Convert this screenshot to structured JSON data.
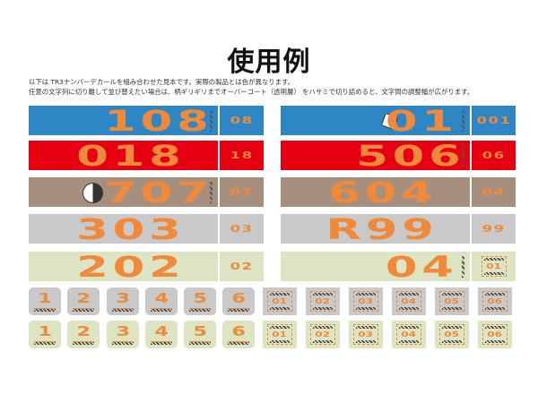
{
  "title": "使用例",
  "description": [
    "以下は TR3ナンバーデカールを組み合わせた見本です。実際の製品とは色が異なります。",
    "任意の文字列に切り離して並び替えたい場合は、柄ギリギリまでオーバーコート（透明層） をハサミで切り詰めると、文字間の調整幅が広がります。"
  ],
  "colors": {
    "blue": "#2f86c4",
    "red": "#e60012",
    "tan": "#a68f7c",
    "gray": "#c9c9c9",
    "green": "#dde4c4",
    "orange": "#f08a3a"
  },
  "left_rows": [
    {
      "number": "108",
      "small": "08",
      "bg": "blue",
      "stripe": true
    },
    {
      "number": "018",
      "small": "18",
      "bg": "red"
    },
    {
      "number": "707",
      "small": "07",
      "bg": "tan",
      "icon": "yin-yang-icon",
      "stripe": true
    },
    {
      "number": "303",
      "small": "03",
      "bg": "gray"
    },
    {
      "number": "202",
      "small": "02",
      "bg": "green"
    }
  ],
  "right_rows": [
    {
      "number": "01",
      "small": "001",
      "bg": "blue",
      "icon": "dice-icon",
      "stripe": true
    },
    {
      "number": "506",
      "small": "06",
      "bg": "red",
      "stripe": true
    },
    {
      "number": "604",
      "small": "04",
      "bg": "tan"
    },
    {
      "number": "R99",
      "small": "99",
      "bg": "gray"
    },
    {
      "number": "04",
      "small": "01",
      "bg": "green",
      "stripe": true
    }
  ],
  "tiles_digits": [
    "1",
    "2",
    "3",
    "4",
    "5",
    "6"
  ],
  "tiles_boxed": [
    "01",
    "02",
    "03",
    "04",
    "05",
    "06"
  ]
}
